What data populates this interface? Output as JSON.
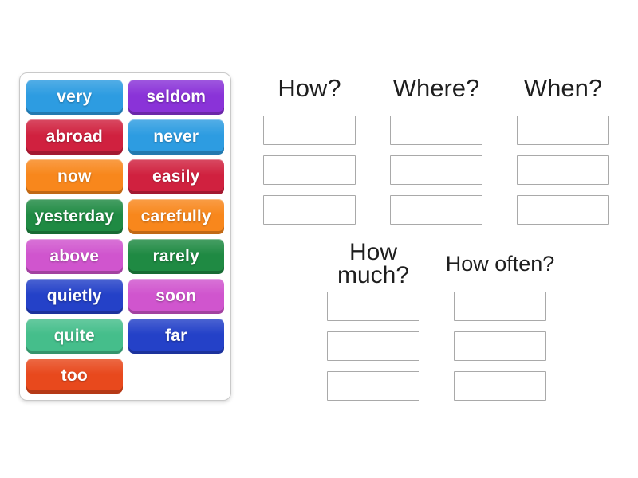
{
  "page": {
    "background_color": "#ffffff",
    "header_text_color": "#1e1e1e",
    "slot_border_color": "#a9a9a9",
    "panel_border_color": "#c9c9c9"
  },
  "word_bank": {
    "words": [
      {
        "label": "very",
        "color": "#2D9CE1"
      },
      {
        "label": "seldom",
        "color": "#8A33D8"
      },
      {
        "label": "abroad",
        "color": "#D0213F"
      },
      {
        "label": "never",
        "color": "#2D9CE1"
      },
      {
        "label": "now",
        "color": "#F8871C"
      },
      {
        "label": "easily",
        "color": "#D0213F"
      },
      {
        "label": "yesterday",
        "color": "#1F8A43"
      },
      {
        "label": "carefully",
        "color": "#F8871C"
      },
      {
        "label": "above",
        "color": "#D055CE"
      },
      {
        "label": "rarely",
        "color": "#1F8A43"
      },
      {
        "label": "quietly",
        "color": "#2441C8"
      },
      {
        "label": "soon",
        "color": "#D055CE"
      },
      {
        "label": "quite",
        "color": "#45BE8B"
      },
      {
        "label": "far",
        "color": "#2441C8"
      },
      {
        "label": "too",
        "color": "#E8491D"
      }
    ]
  },
  "groups": [
    {
      "label": "How?",
      "empty_slots": 3
    },
    {
      "label": "Where?",
      "empty_slots": 3
    },
    {
      "label": "When?",
      "empty_slots": 3
    },
    {
      "label": "How much?",
      "empty_slots": 3
    },
    {
      "label": "How often?",
      "empty_slots": 3
    }
  ]
}
